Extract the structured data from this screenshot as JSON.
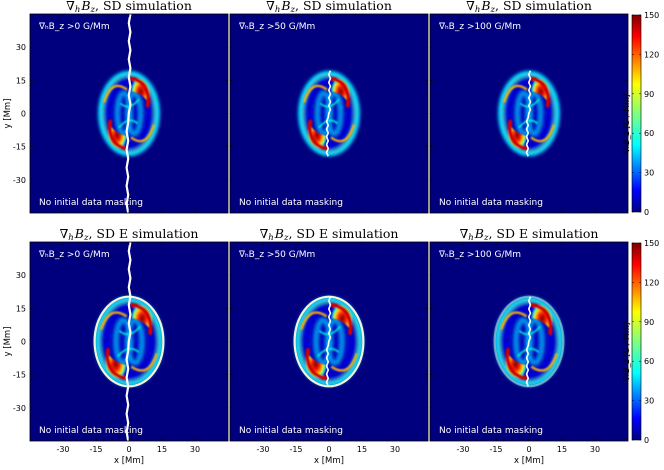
{
  "figure": {
    "panels": [
      {
        "row": 0,
        "col": 0,
        "title_prefix": "∇",
        "title_sub": "h",
        "title_var": "B",
        "title_varsub": "z",
        "title_rest": ", SD simulation",
        "threshold": "∇ₕB_z >0 G/Mm",
        "note": "No initial data masking",
        "variant": "SD",
        "level": 0,
        "split": true
      },
      {
        "row": 0,
        "col": 1,
        "title_prefix": "∇",
        "title_sub": "h",
        "title_var": "B",
        "title_varsub": "z",
        "title_rest": ", SD simulation",
        "threshold": "∇ₕB_z >50 G/Mm",
        "note": "No initial data masking",
        "variant": "SD",
        "level": 1,
        "split": false
      },
      {
        "row": 0,
        "col": 2,
        "title_prefix": "∇",
        "title_sub": "h",
        "title_var": "B",
        "title_varsub": "z",
        "title_rest": ", SD simulation",
        "threshold": "∇ₕB_z >100 G/Mm",
        "note": "No initial data masking",
        "variant": "SD",
        "level": 2,
        "split": false
      },
      {
        "row": 1,
        "col": 0,
        "title_prefix": "∇",
        "title_sub": "h",
        "title_var": "B",
        "title_varsub": "z",
        "title_rest": ", SD E simulation",
        "threshold": "∇ₕB_z >0 G/Mm",
        "note": "No initial data masking",
        "variant": "SDE",
        "level": 0,
        "split": true
      },
      {
        "row": 1,
        "col": 1,
        "title_prefix": "∇",
        "title_sub": "h",
        "title_var": "B",
        "title_varsub": "z",
        "title_rest": ", SD E simulation",
        "threshold": "∇ₕB_z >50 G/Mm",
        "note": "No initial data masking",
        "variant": "SDE",
        "level": 1,
        "split": false
      },
      {
        "row": 1,
        "col": 2,
        "title_prefix": "∇",
        "title_sub": "h",
        "title_var": "B",
        "title_varsub": "z",
        "title_rest": ", SD E simulation",
        "threshold": "∇ₕB_z >100 G/Mm",
        "note": "No initial data masking",
        "variant": "SDE",
        "level": 2,
        "split": false
      }
    ],
    "x_axis": {
      "label": "x [Mm]",
      "ticks": [
        -30,
        -15,
        0,
        15,
        30
      ],
      "range": [
        -45,
        45
      ]
    },
    "y_axis": {
      "label": "y [Mm]",
      "ticks": [
        30,
        15,
        0,
        -15,
        -30
      ],
      "range": [
        -45,
        45
      ]
    },
    "colorbar": {
      "label": "∇ₕB_z [G / Mm]",
      "ticks": [
        0,
        30,
        60,
        90,
        120,
        150
      ],
      "range": [
        0,
        150
      ],
      "colormap": "jet"
    },
    "colors": {
      "background": "#00007f",
      "annotation": "#ffffff"
    }
  }
}
